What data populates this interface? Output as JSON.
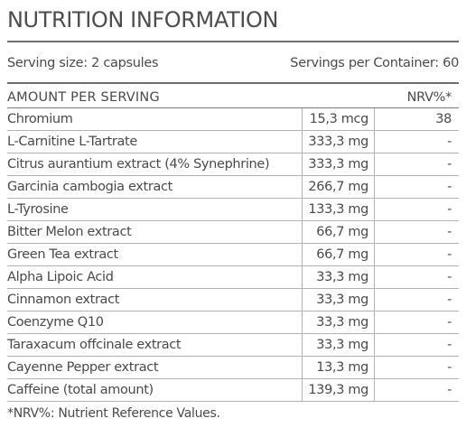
{
  "title": "NUTRITION INFORMATION",
  "serving": {
    "size": "Serving size: 2 capsules",
    "per_container": "Servings per Container: 60"
  },
  "table": {
    "header": {
      "name": "AMOUNT PER SERVING",
      "amount": "",
      "nrv": "NRV%*"
    },
    "rows": [
      {
        "name": "Chromium",
        "amount": "15,3 mcg",
        "nrv": "38"
      },
      {
        "name": "L-Carnitine L-Tartrate",
        "amount": "333,3 mg",
        "nrv": "-"
      },
      {
        "name": "Citrus aurantium extract (4% Synephrine)",
        "amount": "333,3 mg",
        "nrv": "-"
      },
      {
        "name": "Garcinia cambogia extract",
        "amount": "266,7 mg",
        "nrv": "-"
      },
      {
        "name": "L-Tyrosine",
        "amount": "133,3 mg",
        "nrv": "-"
      },
      {
        "name": "Bitter Melon extract",
        "amount": "66,7 mg",
        "nrv": "-"
      },
      {
        "name": "Green Tea extract",
        "amount": "66,7 mg",
        "nrv": "-"
      },
      {
        "name": "Alpha Lipoic Acid",
        "amount": "33,3 mg",
        "nrv": "-"
      },
      {
        "name": "Cinnamon extract",
        "amount": "33,3 mg",
        "nrv": "-"
      },
      {
        "name": "Coenzyme Q10",
        "amount": "33,3 mg",
        "nrv": "-"
      },
      {
        "name": "Taraxacum offcinale extract",
        "amount": "33,3 mg",
        "nrv": "-"
      },
      {
        "name": "Cayenne Pepper extract",
        "amount": "13,3 mg",
        "nrv": "-"
      },
      {
        "name": "Caffeine (total amount)",
        "amount": "139,3 mg",
        "nrv": "-"
      }
    ]
  },
  "footnote": "*NRV%: Nutrient Reference Values."
}
